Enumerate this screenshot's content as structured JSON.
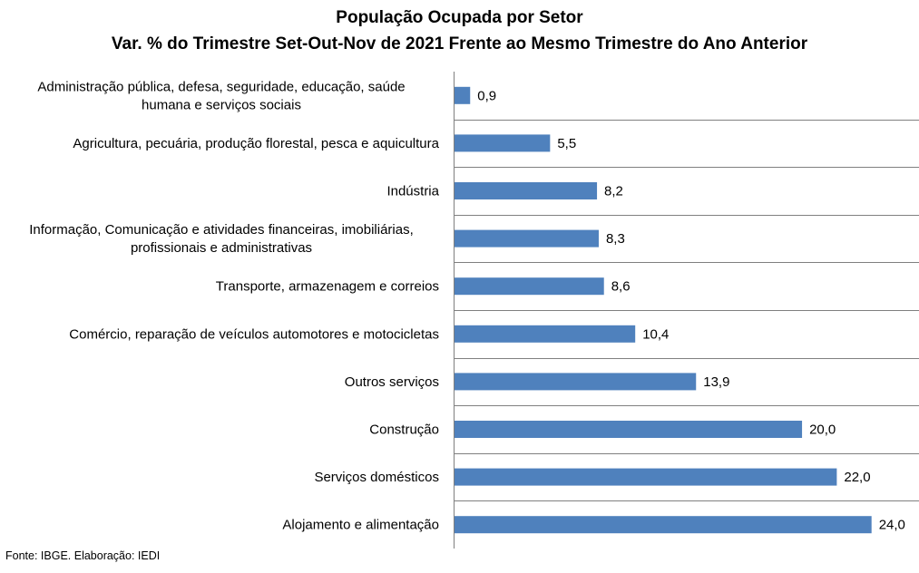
{
  "title": "População Ocupada por Setor",
  "subtitle": "Var. % do Trimestre Set-Out-Nov de 2021 Frente ao Mesmo Trimestre do Ano Anterior",
  "source": "Fonte: IBGE. Elaboração: IEDI",
  "chart_data": {
    "type": "bar",
    "orientation": "horizontal",
    "title": "População Ocupada por Setor",
    "subtitle": "Var. % do Trimestre Set-Out-Nov de 2021 Frente ao Mesmo Trimestre do Ano Anterior",
    "categories": [
      [
        "Administração pública, defesa, seguridade, educação, saúde",
        "humana e serviços sociais"
      ],
      [
        "Agricultura, pecuária, produção florestal, pesca e aquicultura"
      ],
      [
        "Indústria"
      ],
      [
        "Informação, Comunicação e atividades financeiras, imobiliárias,",
        "profissionais e administrativas"
      ],
      [
        "Transporte, armazenagem e correios"
      ],
      [
        "Comércio, reparação de veículos automotores e motocicletas"
      ],
      [
        "Outros serviços"
      ],
      [
        "Construção"
      ],
      [
        "Serviços domésticos"
      ],
      [
        "Alojamento e alimentação"
      ]
    ],
    "values": [
      0.9,
      5.5,
      8.2,
      8.3,
      8.6,
      10.4,
      13.9,
      20.0,
      22.0,
      24.0
    ],
    "value_labels": [
      "0,9",
      "5,5",
      "8,2",
      "8,3",
      "8,6",
      "10,4",
      "13,9",
      "20,0",
      "22,0",
      "24,0"
    ],
    "xlim": [
      0,
      26
    ],
    "grid": "horizontal separators",
    "legend": "none",
    "bar_color": "#4F81BD"
  }
}
